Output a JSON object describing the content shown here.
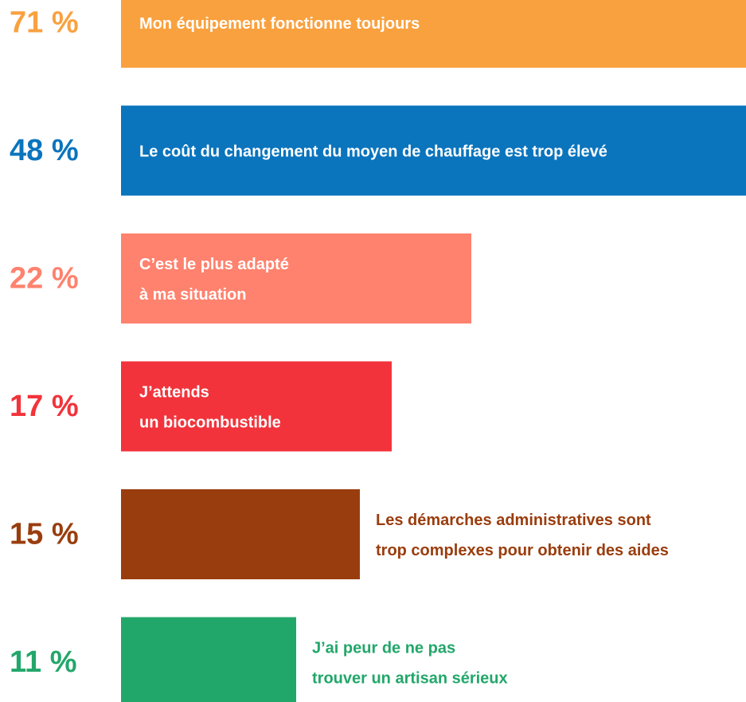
{
  "chart_data": {
    "type": "bar",
    "categories": [
      [
        "Mon équipement fonctionne toujours"
      ],
      [
        "Le coût du changement du moyen de chauffage est trop élevé"
      ],
      [
        "C’est le plus adapté",
        "à ma situation"
      ],
      [
        "J’attends",
        "un biocombustible"
      ],
      [
        "Les démarches administratives sont",
        "trop complexes pour obtenir des aides"
      ],
      [
        "J’ai peur de ne pas",
        "trouver un artisan sérieux"
      ]
    ],
    "values": [
      71,
      48,
      22,
      17,
      15,
      11
    ],
    "value_labels": [
      "71 %",
      "48 %",
      "22 %",
      "17 %",
      "15 %",
      "11 %"
    ],
    "colors": [
      "#f9a13f",
      "#0a74bd",
      "#ff826e",
      "#f2333b",
      "#9a3d0e",
      "#22a76a"
    ]
  }
}
